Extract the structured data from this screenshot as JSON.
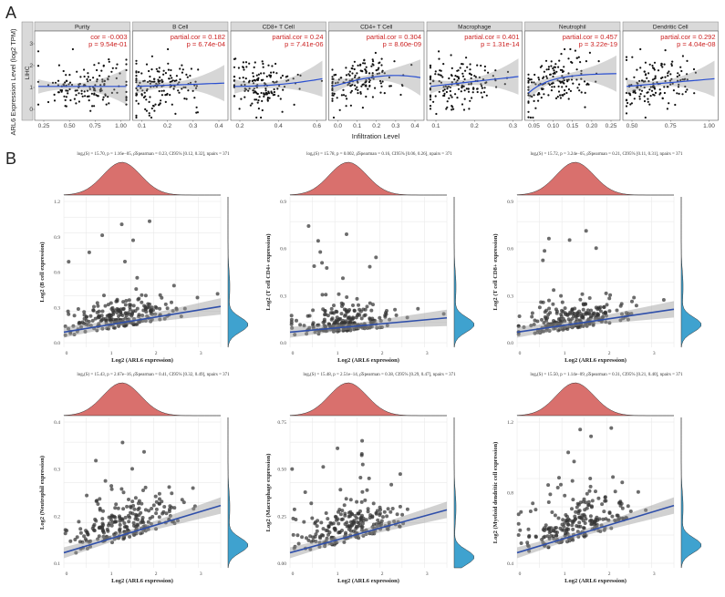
{
  "figure": {
    "label_a": "A",
    "label_b": "B",
    "accent_red": "#d9706d",
    "accent_blue": "#3fa2cf",
    "fit_blue": "#2f4faa"
  },
  "panel_a": {
    "ylabel": "ARL6 Expression Level (log2 TPM)",
    "xlabel": "Infiltration Level",
    "side_strip": "LIHC",
    "y_ticks": [
      "0",
      "1",
      "2",
      "3"
    ],
    "facets": [
      {
        "title": "Purity",
        "stat1": "cor = -0.003",
        "stat2": "p = 9.54e-01",
        "xticks": [
          "0.25",
          "0.50",
          "0.75",
          "1.00"
        ]
      },
      {
        "title": "B Cell",
        "stat1": "partial.cor = 0.182",
        "stat2": "p = 6.74e-04",
        "xticks": [
          "0.1",
          "0.2",
          "0.3",
          "0.4"
        ]
      },
      {
        "title": "CD8+ T Cell",
        "stat1": "partial.cor = 0.24",
        "stat2": "p = 7.41e-06",
        "xticks": [
          "0.2",
          "0.4",
          "0.6"
        ]
      },
      {
        "title": "CD4+ T Cell",
        "stat1": "partial.cor = 0.304",
        "stat2": "p = 8.60e-09",
        "xticks": [
          "0.0",
          "0.1",
          "0.2",
          "0.3",
          "0.4"
        ]
      },
      {
        "title": "Macrophage",
        "stat1": "partial.cor = 0.401",
        "stat2": "p = 1.31e-14",
        "xticks": [
          "0.1",
          "0.2",
          "0.3"
        ]
      },
      {
        "title": "Neutrophil",
        "stat1": "partial.cor = 0.457",
        "stat2": "p = 3.22e-19",
        "xticks": [
          "0.05",
          "0.10",
          "0.15",
          "0.20",
          "0.25"
        ]
      },
      {
        "title": "Dendritic Cell",
        "stat1": "partial.cor = 0.292",
        "stat2": "p = 4.04e-08",
        "xticks": [
          "0.50",
          "0.75",
          "1.00"
        ]
      }
    ]
  },
  "panel_b": {
    "xlabel": "Log2 (ARL6 expression)",
    "x_ticks": [
      "0",
      "1",
      "2",
      "3"
    ],
    "plots": [
      {
        "header": "logₑ(S) = 15.70, p = 1.16e−05, ρ̂Spearman = 0.23, CI95% [0.12, 0.32], npairs = 371",
        "ylabel": "Log2 (B cell expression)",
        "yticks": [
          "0.0",
          "0.3",
          "0.6",
          "0.9",
          "1.2"
        ]
      },
      {
        "header": "logₑ(S) = 15.78, p = 0.002, ρ̂Spearman = 0.16, CI95% [0.06, 0.26], npairs = 371",
        "ylabel": "Log2 (T cell CD4+ expression)",
        "yticks": [
          "0.0",
          "0.3",
          "0.6",
          "0.9"
        ]
      },
      {
        "header": "logₑ(S) = 15.72, p = 3.24e−05, ρ̂Spearman = 0.21, CI95% [0.11, 0.31], npairs = 371",
        "ylabel": "Log2 (T cell CD8+ expression)",
        "yticks": [
          "0.0",
          "0.3",
          "0.6",
          "0.9"
        ]
      },
      {
        "header": "logₑ(S) = 15.43, p = 2.67e−16, ρ̂Spearman = 0.41, CI95% [0.32, 0.49], npairs = 371",
        "ylabel": "Log2 (Neutrophil expression)",
        "yticks": [
          "0.1",
          "0.2",
          "0.3",
          "0.4"
        ]
      },
      {
        "header": "logₑ(S) = 15.48, p = 2.51e−14, ρ̂Spearman = 0.38, CI95% [0.29, 0.47], npairs = 371",
        "ylabel": "Log2 (Macrophage expression)",
        "yticks": [
          "0.00",
          "0.25",
          "0.50",
          "0.75"
        ]
      },
      {
        "header": "logₑ(S) = 15.50, p = 1.14e−09, ρ̂Spearman = 0.31, CI95% [0.21, 0.40], npairs = 371",
        "ylabel": "Log2 (Myeloid dendritic cell expression)",
        "yticks": [
          "0.4",
          "0.8",
          "1.2"
        ]
      }
    ]
  }
}
